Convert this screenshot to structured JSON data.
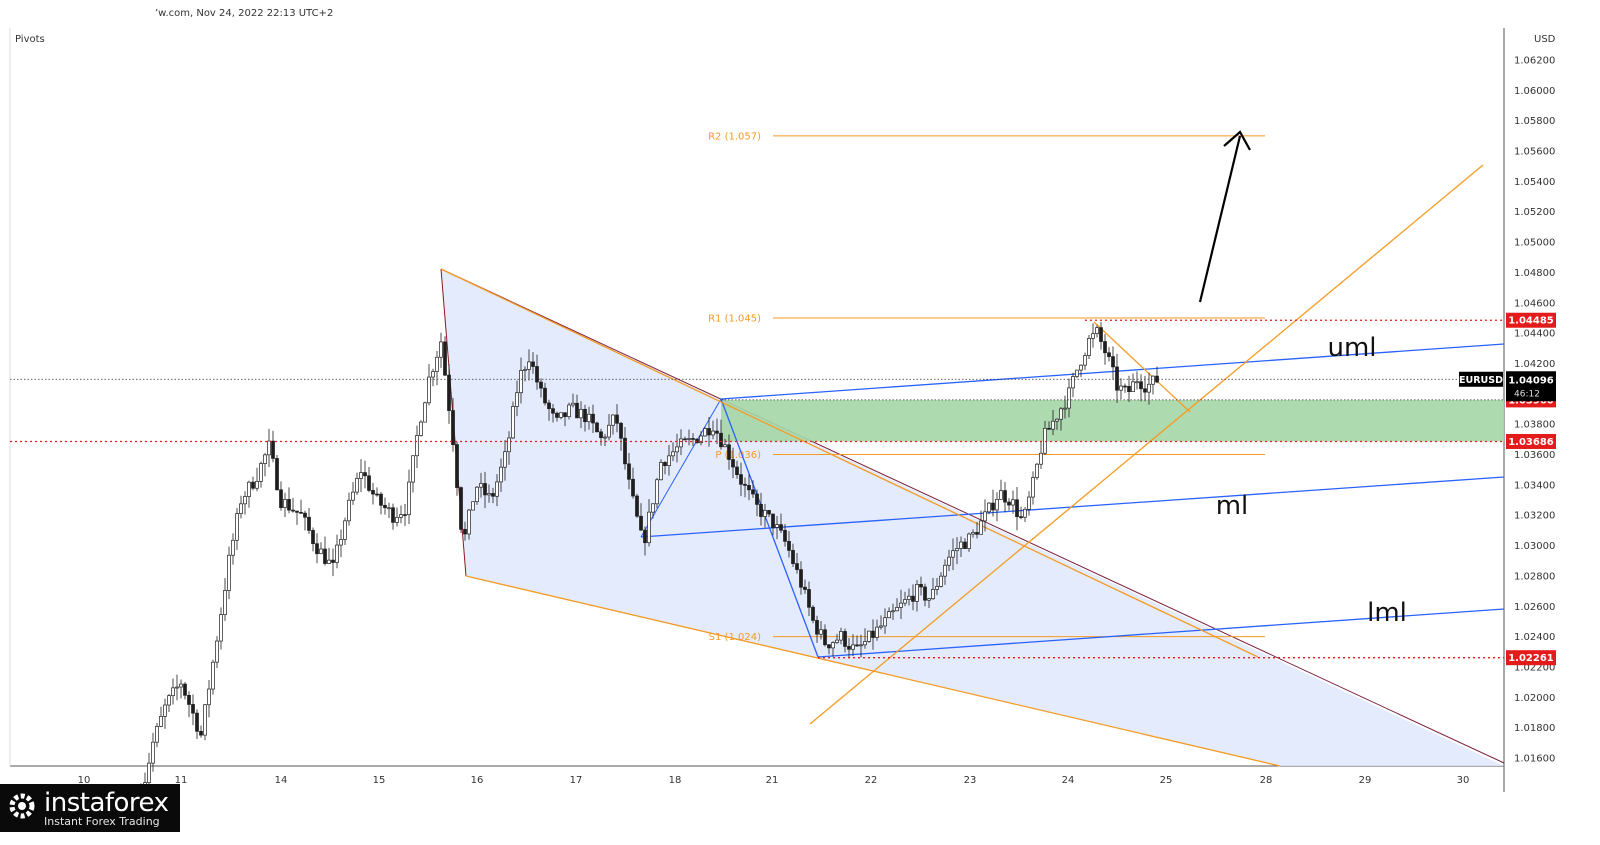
{
  "header": {
    "timestamp": "’w.com, Nov 24, 2022 22:13 UTC+2",
    "indicator": "Pivots",
    "currency": "USD"
  },
  "branding": {
    "name": "instaforex",
    "tagline": "Instant Forex Trading"
  },
  "colors": {
    "bull": "#26a69a",
    "bear": "#ef5350",
    "candle": "#1e1e1e",
    "pivot": "#f59a23",
    "trendline": "#2962ff",
    "zone": "#a5d6a7",
    "level_tag": "#e41b1b",
    "price_tag": "#000000",
    "wedge_fill": "#dfe7fb"
  },
  "chart_data": {
    "type": "candlestick",
    "symbol": "EURUSD",
    "y_axis": {
      "range": [
        1.015,
        1.065
      ],
      "ticks": [
        "1.06200",
        "1.06000",
        "1.05800",
        "1.05600",
        "1.05400",
        "1.05200",
        "1.05000",
        "1.04800",
        "1.04600",
        "1.04400",
        "1.04200",
        "1.03800",
        "1.03600",
        "1.03400",
        "1.03200",
        "1.03000",
        "1.02800",
        "1.02600",
        "1.02400",
        "1.02200",
        "1.02000",
        "1.01800",
        "1.01600"
      ]
    },
    "x_axis": {
      "ticks": [
        "10",
        "11",
        "14",
        "15",
        "16",
        "17",
        "18",
        "21",
        "22",
        "23",
        "24",
        "25",
        "28",
        "29",
        "30"
      ]
    },
    "pivots": [
      {
        "label": "R2 (1.057)",
        "value": 1.057
      },
      {
        "label": "R1 (1.045)",
        "value": 1.045
      },
      {
        "label": "P (1.036)",
        "value": 1.036
      },
      {
        "label": "S1 (1.024)",
        "value": 1.024
      }
    ],
    "price_tags": [
      {
        "label": "1.04485",
        "value": 1.04485
      },
      {
        "label": "1.03960",
        "value": 1.0396
      },
      {
        "label": "1.03686",
        "value": 1.03686
      },
      {
        "label": "1.02261",
        "value": 1.02261
      }
    ],
    "current": {
      "symbol": "EURUSD",
      "price": "1.04096",
      "countdown": "46:12",
      "value": 1.04096
    },
    "annotations": [
      "uml",
      "ml",
      "lml"
    ],
    "zone": {
      "top": 1.0396,
      "bottom": 1.03686
    }
  }
}
